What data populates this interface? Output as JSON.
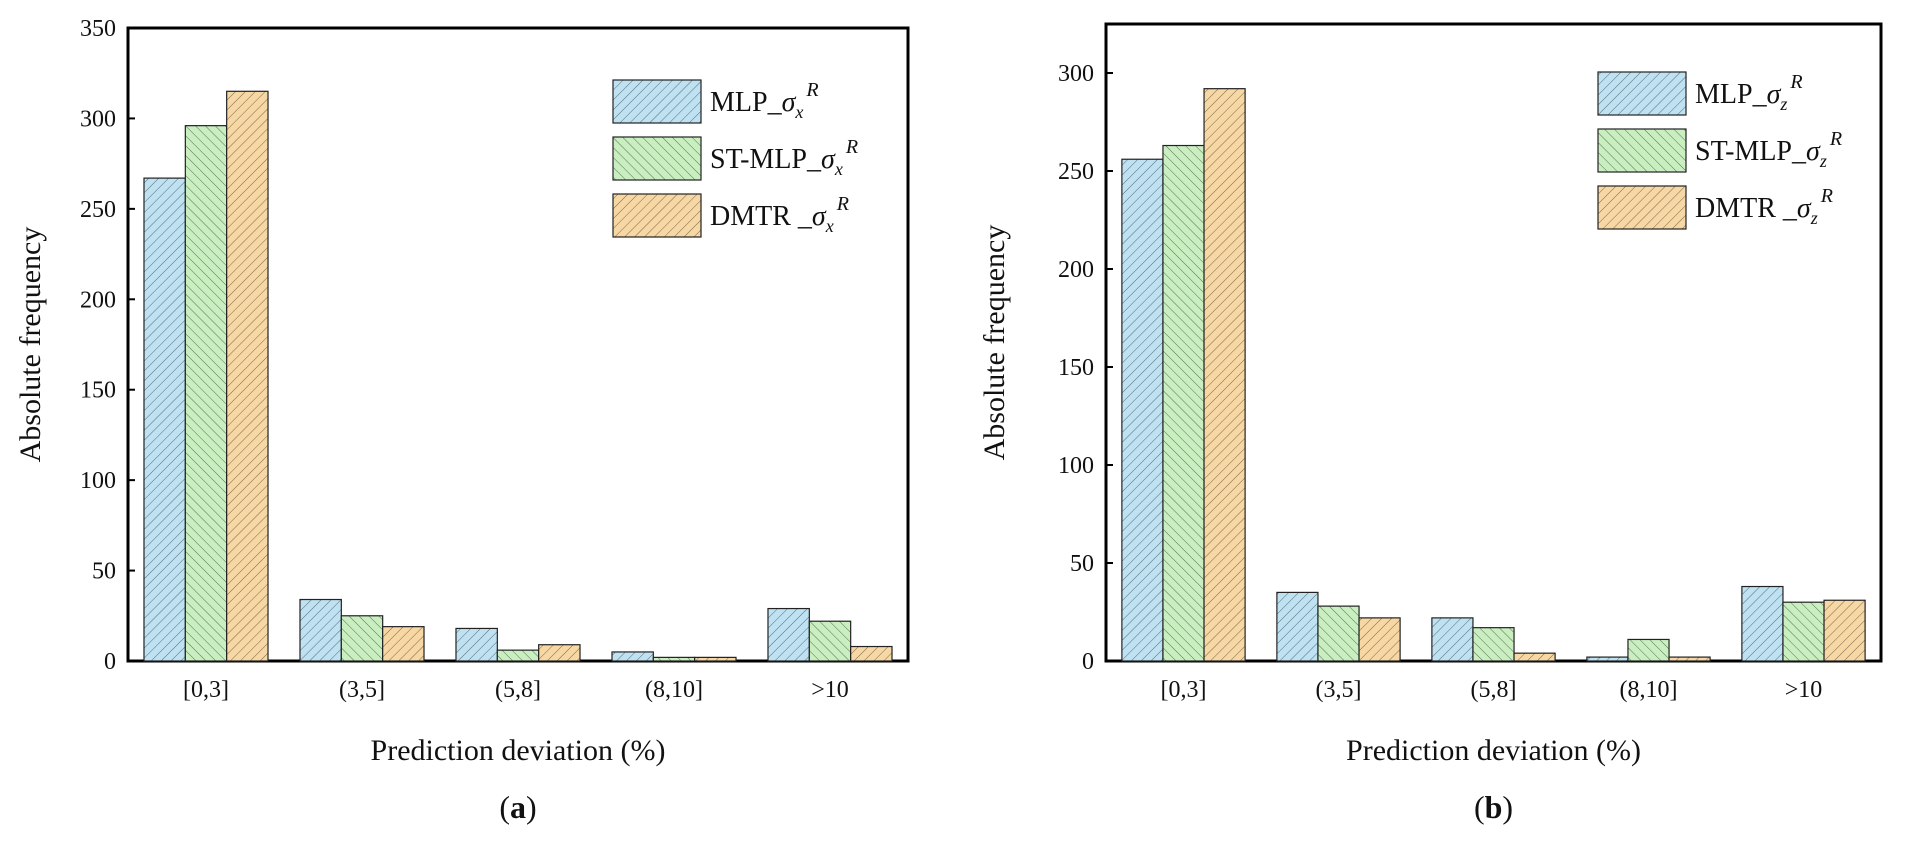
{
  "colors": {
    "MLP": "#bfe2f3",
    "ST-MLP": "#c9efc0",
    "DMTR": "#f7d7a3",
    "hatch": "#666666",
    "axis": "#000000"
  },
  "chart_data": [
    {
      "type": "bar",
      "panel_label": "a",
      "categories": [
        "[0,3]",
        "(3,5]",
        "(5,8]",
        "(8,10]",
        ">10"
      ],
      "xlabel": "Prediction deviation (%)",
      "ylabel": "Absolute frequency",
      "ylim": [
        0,
        350
      ],
      "yticks": [
        0,
        50,
        100,
        150,
        200,
        250,
        300,
        350
      ],
      "grid": false,
      "legend_position": "top-right",
      "series": [
        {
          "name": "MLP_σx^R",
          "label_base": "MLP_",
          "symbol": "σ",
          "sub": "x",
          "sup": "R",
          "color_key": "MLP",
          "values": [
            267,
            34,
            18,
            5,
            29
          ]
        },
        {
          "name": "ST-MLP_σx^R",
          "label_base": "ST-MLP_",
          "symbol": "σ",
          "sub": "x",
          "sup": "R",
          "color_key": "ST-MLP",
          "values": [
            296,
            25,
            6,
            2,
            22
          ]
        },
        {
          "name": "DMTR_σx^R",
          "label_base": "DMTR _",
          "symbol": "σ",
          "sub": "x",
          "sup": "R",
          "color_key": "DMTR",
          "values": [
            315,
            19,
            9,
            2,
            8
          ]
        }
      ]
    },
    {
      "type": "bar",
      "panel_label": "b",
      "categories": [
        "[0,3]",
        "(3,5]",
        "(5,8]",
        "(8,10]",
        ">10"
      ],
      "xlabel": "Prediction deviation (%)",
      "ylabel": "Absolute frequency",
      "ylim": [
        0,
        325
      ],
      "yticks": [
        0,
        50,
        100,
        150,
        200,
        250,
        300
      ],
      "grid": false,
      "legend_position": "top-right",
      "series": [
        {
          "name": "MLP_σz^R",
          "label_base": "MLP_",
          "symbol": "σ",
          "sub": "z",
          "sup": "R",
          "color_key": "MLP",
          "values": [
            256,
            35,
            22,
            2,
            38
          ]
        },
        {
          "name": "ST-MLP_σz^R",
          "label_base": "ST-MLP_",
          "symbol": "σ",
          "sub": "z",
          "sup": "R",
          "color_key": "ST-MLP",
          "values": [
            263,
            28,
            17,
            11,
            30
          ]
        },
        {
          "name": "DMTR_σz^R",
          "label_base": "DMTR _",
          "symbol": "σ",
          "sub": "z",
          "sup": "R",
          "color_key": "DMTR",
          "values": [
            292,
            22,
            4,
            2,
            31
          ]
        }
      ]
    }
  ]
}
